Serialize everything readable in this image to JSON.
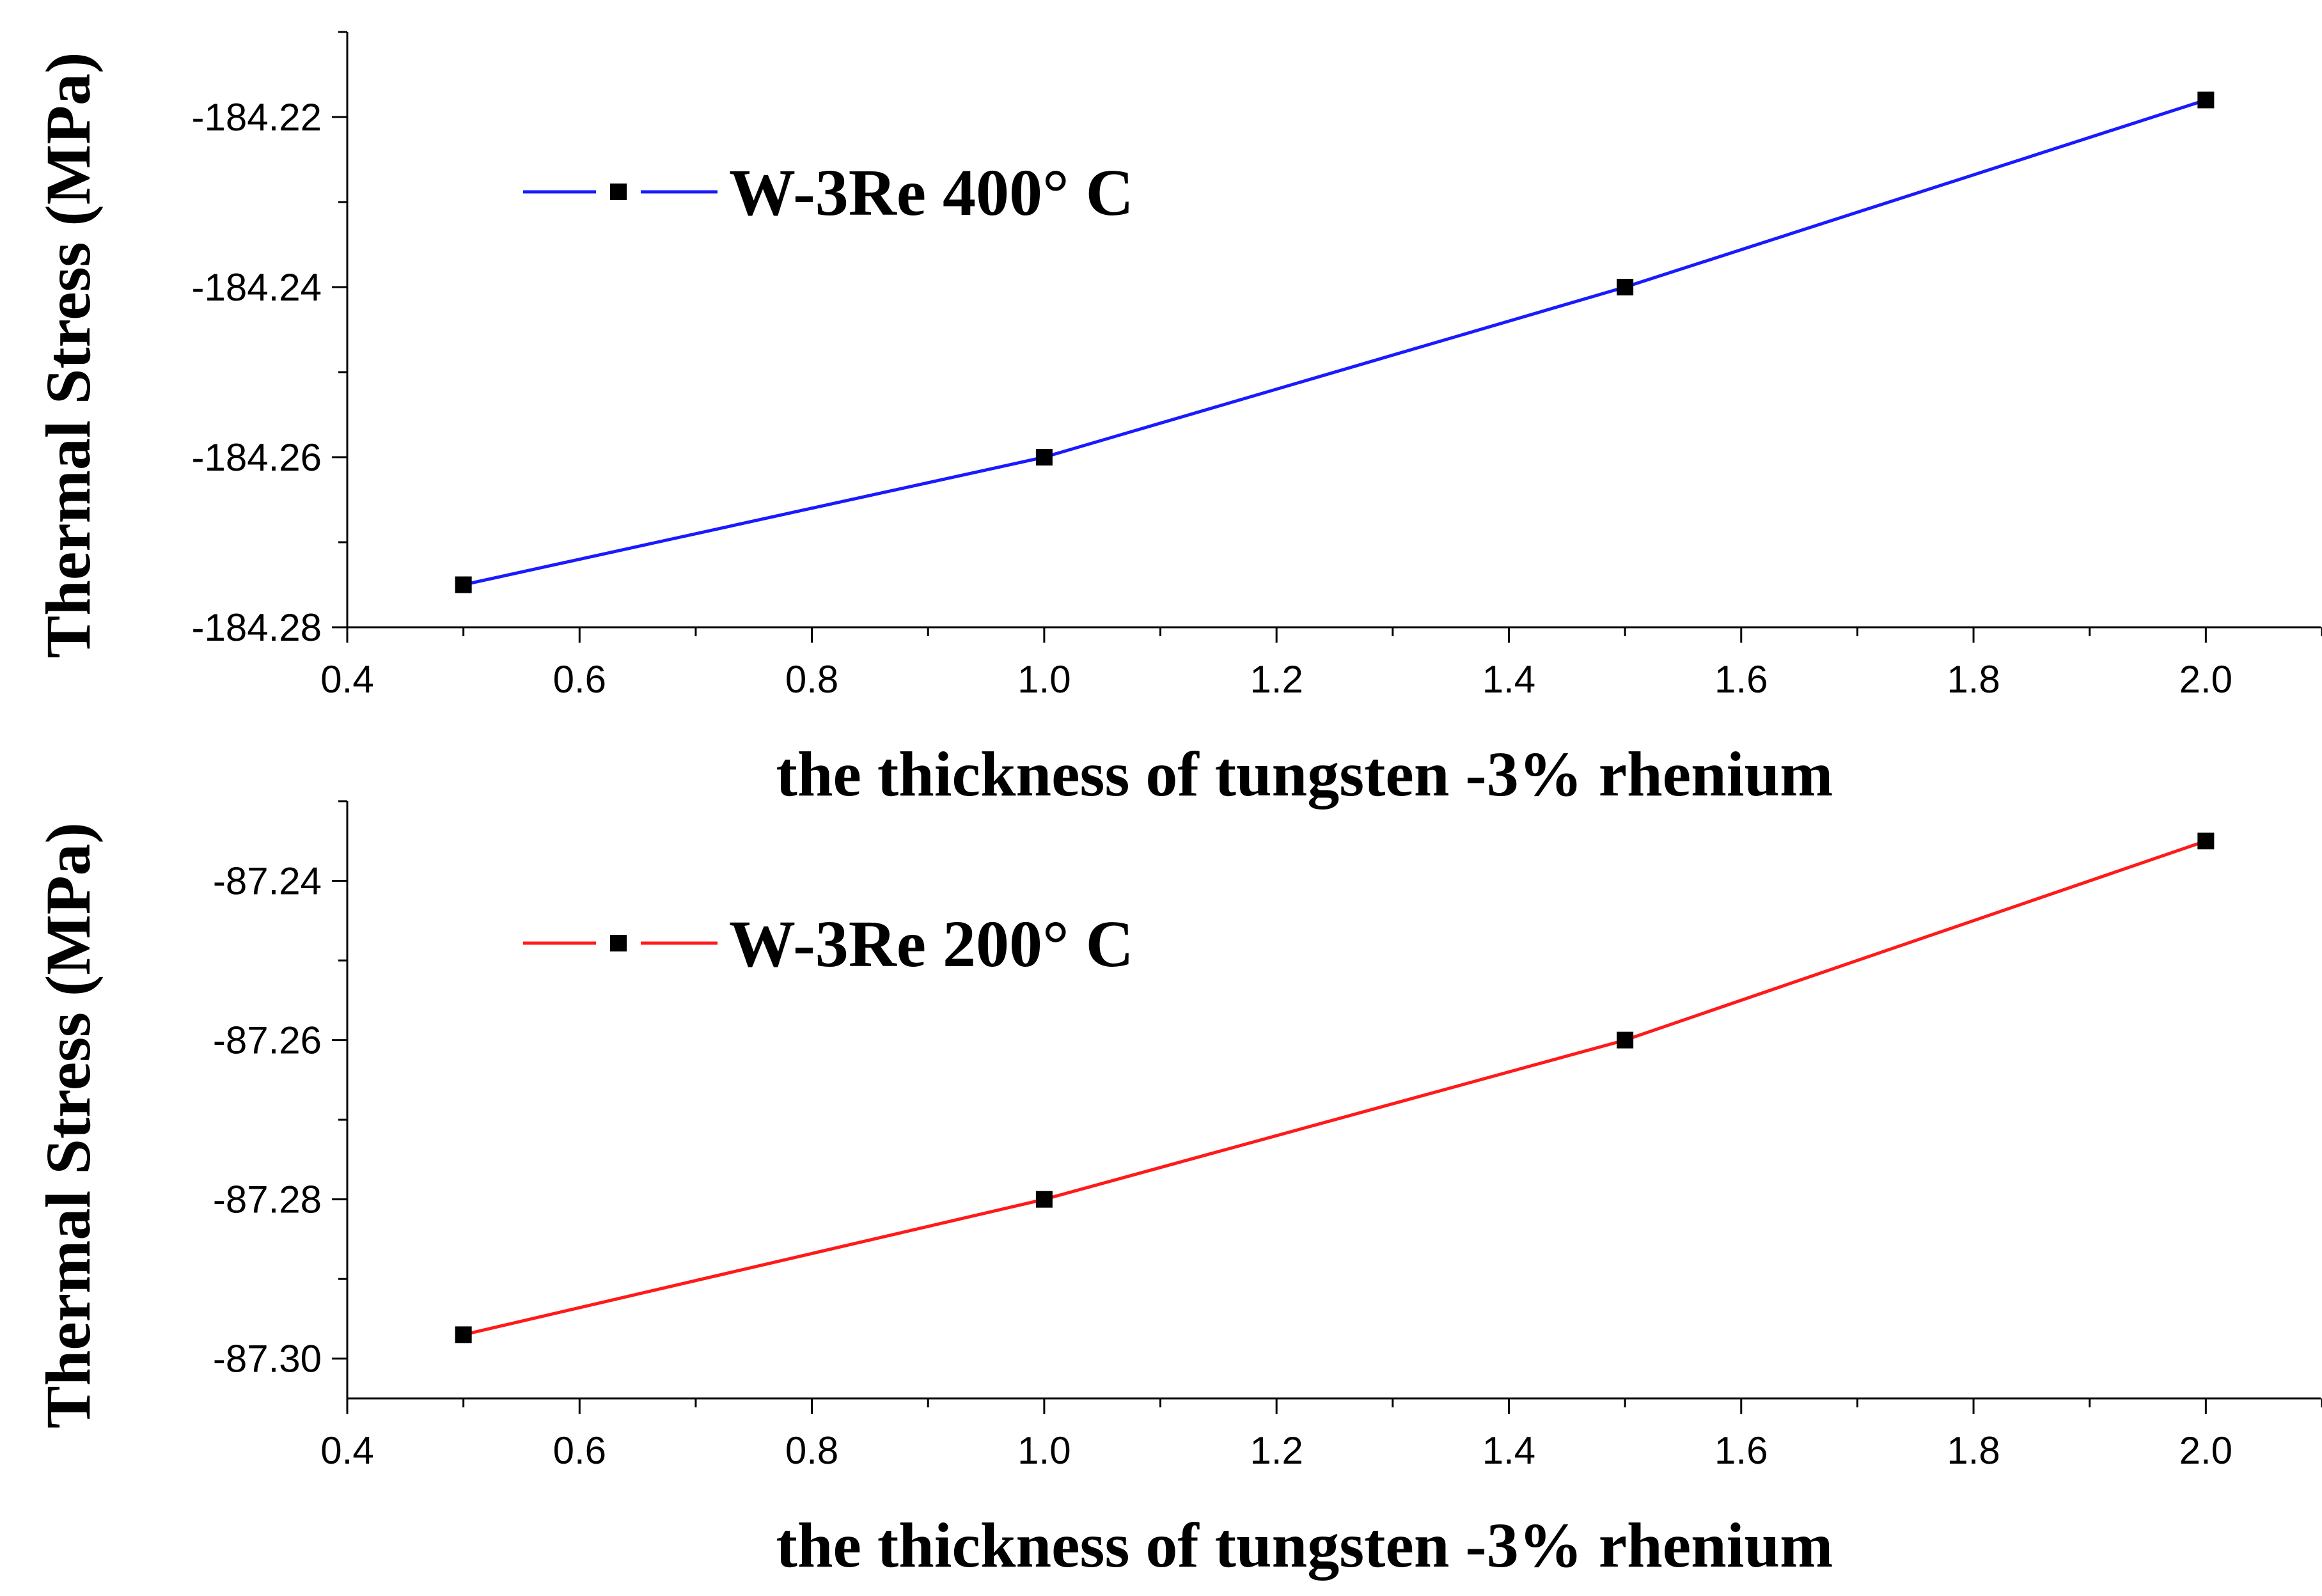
{
  "chart_data": [
    {
      "type": "line",
      "xlabel": "the thickness of tungsten -3% rhenium",
      "ylabel": "Thermal Stress (MPa)",
      "xlim": [
        0.4,
        2.1
      ],
      "ylim": [
        -184.28,
        -184.21
      ],
      "xticks": [
        0.4,
        0.6,
        0.8,
        1.0,
        1.2,
        1.4,
        1.6,
        1.8,
        2.0
      ],
      "xtick_labels": [
        "0.4",
        "0.6",
        "0.8",
        "1.0",
        "1.2",
        "1.4",
        "1.6",
        "1.8",
        "2.0"
      ],
      "yticks": [
        -184.28,
        -184.26,
        -184.24,
        -184.22
      ],
      "ytick_labels": [
        "-184.28",
        "-184.26",
        "-184.24",
        "-184.22"
      ],
      "legend_position": "top-left",
      "series": [
        {
          "name": "W-3Re 400° C",
          "color": "#1a1aff",
          "marker_color": "#000000",
          "x": [
            0.5,
            1.0,
            1.5,
            2.0
          ],
          "y": [
            -184.275,
            -184.26,
            -184.24,
            -184.218
          ]
        }
      ]
    },
    {
      "type": "line",
      "xlabel": "the thickness of tungsten -3% rhenium",
      "ylabel": "Thermal Stress (MPa)",
      "xlim": [
        0.4,
        2.1
      ],
      "ylim": [
        -87.305,
        -87.23
      ],
      "xticks": [
        0.4,
        0.6,
        0.8,
        1.0,
        1.2,
        1.4,
        1.6,
        1.8,
        2.0
      ],
      "xtick_labels": [
        "0.4",
        "0.6",
        "0.8",
        "1.0",
        "1.2",
        "1.4",
        "1.6",
        "1.8",
        "2.0"
      ],
      "yticks": [
        -87.3,
        -87.28,
        -87.26,
        -87.24
      ],
      "ytick_labels": [
        "-87.30",
        "-87.28",
        "-87.26",
        "-87.24"
      ],
      "legend_position": "top-left",
      "series": [
        {
          "name": "W-3Re 200° C",
          "color": "#ff1a1a",
          "marker_color": "#000000",
          "x": [
            0.5,
            1.0,
            1.5,
            2.0
          ],
          "y": [
            -87.297,
            -87.28,
            -87.26,
            -87.235
          ]
        }
      ]
    }
  ]
}
